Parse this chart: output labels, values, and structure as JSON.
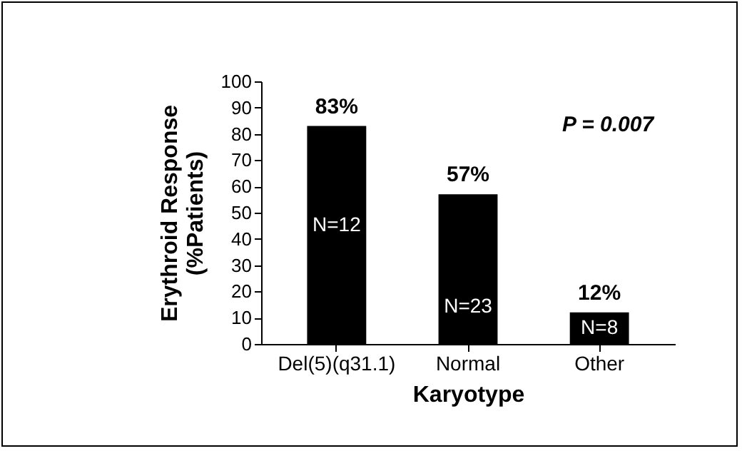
{
  "chart_data": {
    "type": "bar",
    "xlabel": "Karyotype",
    "ylabel": "Erythroid Response\n(%Patients)",
    "categories": [
      "Del(5)(q31.1)",
      "Normal",
      "Other"
    ],
    "values": [
      83,
      57,
      12
    ],
    "value_labels": [
      "83%",
      "57%",
      "12%"
    ],
    "color": "#000000",
    "ylim": [
      0,
      100
    ],
    "yticks": [
      0,
      10,
      20,
      30,
      40,
      50,
      60,
      70,
      80,
      90,
      100
    ],
    "grid": false,
    "annotations": [
      "N=12",
      "N=23",
      "N=8",
      "P = 0.007"
    ]
  }
}
